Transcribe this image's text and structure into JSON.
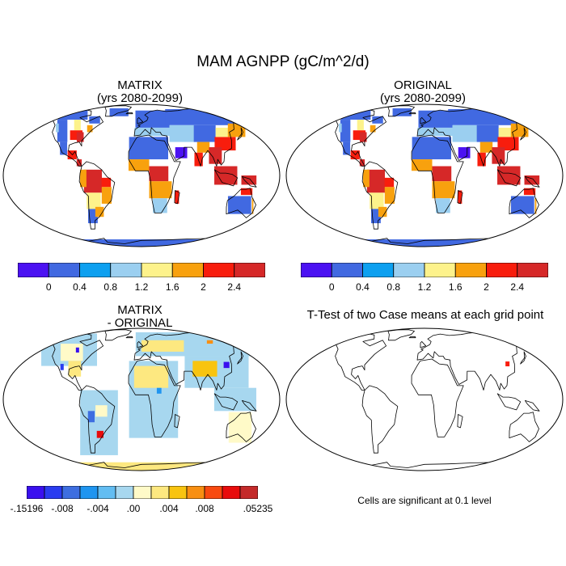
{
  "title": "MAM AGNPP (gC/m^2/d)",
  "panels": [
    {
      "id": "matrix",
      "title_line1": "MATRIX",
      "title_line2": "(yrs 2080-2099)"
    },
    {
      "id": "original",
      "title_line1": "ORIGINAL",
      "title_line2": "(yrs 2080-2099)"
    },
    {
      "id": "diff",
      "title_line1": "MATRIX",
      "title_line2": "- ORIGINAL"
    },
    {
      "id": "ttest",
      "title_line1": "T-Test of two Case means at each grid point",
      "title_line2": ""
    }
  ],
  "colorbar_abs": {
    "colors": [
      "#4b12f2",
      "#4169e1",
      "#0da0f0",
      "#9bcff0",
      "#fdf28b",
      "#f8a10e",
      "#f81d0d",
      "#d62828"
    ],
    "labels": [
      "0",
      "0.4",
      "0.8",
      "1.2",
      "1.6",
      "2",
      "2.4"
    ]
  },
  "colorbar_diff": {
    "colors": [
      "#3a10ef",
      "#2a3cf0",
      "#3e6ee0",
      "#1f95f0",
      "#62bdf2",
      "#a7d7ef",
      "#fffac8",
      "#fde880",
      "#f8c410",
      "#f88f12",
      "#f84a10",
      "#e80c0c",
      "#c42a2a"
    ],
    "labels": [
      "-.15196",
      "-.008",
      "-.004",
      ".00",
      ".004",
      ".008",
      ".05235"
    ]
  },
  "footnote": "Cells are significant at 0.1 level"
}
